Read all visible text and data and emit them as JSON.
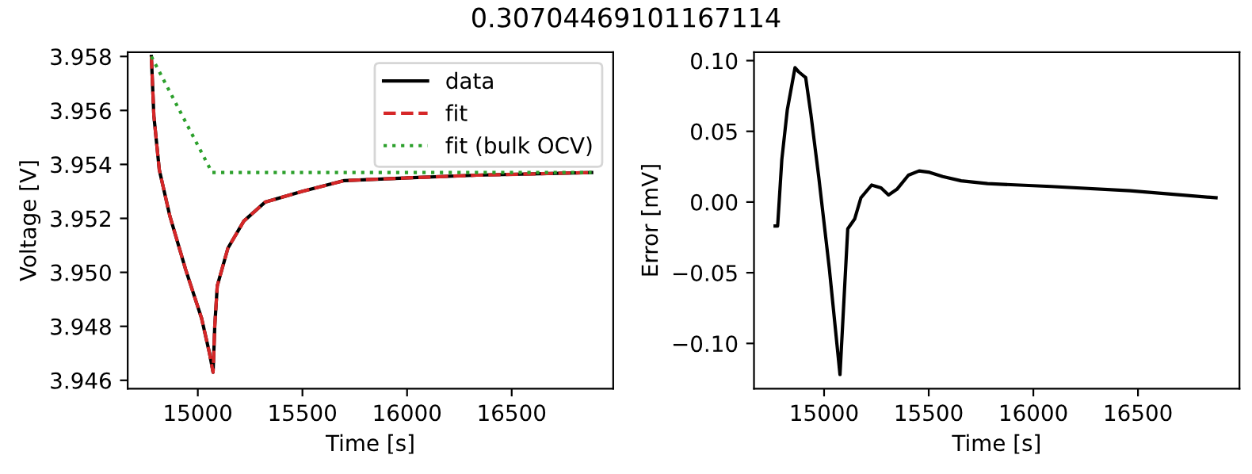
{
  "chart_data": [
    {
      "type": "line",
      "title": "0.30704469101167114",
      "xlabel": "Time [s]",
      "ylabel": "Voltage [V]",
      "xlim": [
        14665,
        16985
      ],
      "xticks": [
        15000,
        15500,
        16000,
        16500
      ],
      "ylim": [
        3.94569,
        3.95816
      ],
      "yticks": [
        {
          "value": 3.946,
          "label": "3.946"
        },
        {
          "value": 3.948,
          "label": "3.948"
        },
        {
          "value": 3.95,
          "label": "3.950"
        },
        {
          "value": 3.952,
          "label": "3.952"
        },
        {
          "value": 3.954,
          "label": "3.954"
        },
        {
          "value": 3.956,
          "label": "3.956"
        },
        {
          "value": 3.958,
          "label": "3.958"
        }
      ],
      "grid": false,
      "legend": "top right",
      "series": [
        {
          "name": "data",
          "color": "#000000",
          "line_style": "solid",
          "x": [
            14778,
            14790,
            14816,
            14866,
            14942,
            15018,
            15056,
            15073,
            15081,
            15093,
            15144,
            15220,
            15321,
            15498,
            15700,
            16003,
            16332,
            16882
          ],
          "values": [
            3.958,
            3.9558,
            3.9538,
            3.9521,
            3.9501,
            3.9483,
            3.947,
            3.9463,
            3.948,
            3.9495,
            3.9509,
            3.9519,
            3.9526,
            3.953,
            3.9534,
            3.9535,
            3.9536,
            3.9537
          ]
        },
        {
          "name": "fit",
          "color": "#d62728",
          "line_style": "dashed",
          "x": [
            14778,
            14790,
            14816,
            14866,
            14942,
            15018,
            15056,
            15073,
            15081,
            15093,
            15144,
            15220,
            15321,
            15498,
            15700,
            16003,
            16332,
            16882
          ],
          "values": [
            3.958,
            3.9558,
            3.9538,
            3.9521,
            3.9501,
            3.9483,
            3.947,
            3.9463,
            3.948,
            3.9495,
            3.9509,
            3.9519,
            3.9526,
            3.953,
            3.9534,
            3.9535,
            3.9536,
            3.9537
          ]
        },
        {
          "name": "fit (bulk OCV)",
          "color": "#2ca02c",
          "line_style": "dotted",
          "x": [
            14778,
            15068,
            16882
          ],
          "values": [
            3.958,
            3.9537,
            3.9537
          ]
        }
      ]
    },
    {
      "type": "line",
      "xlabel": "Time [s]",
      "ylabel": "Error [mV]",
      "xlim": [
        14665,
        16985
      ],
      "xticks": [
        15000,
        15500,
        16000,
        16500
      ],
      "ylim": [
        -0.132,
        0.106
      ],
      "yticks": [
        {
          "value": -0.1,
          "label": "−0.10"
        },
        {
          "value": -0.05,
          "label": "−0.05"
        },
        {
          "value": 0,
          "label": "0.00"
        },
        {
          "value": 0.05,
          "label": "0.05"
        },
        {
          "value": 0.1,
          "label": "0.10"
        }
      ],
      "grid": false,
      "legend": false,
      "series": [
        {
          "color": "#000000",
          "line_style": "solid",
          "x": [
            14766,
            14778,
            14798,
            14824,
            14861,
            14879,
            14912,
            14937,
            14975,
            15025,
            15076,
            15113,
            15146,
            15176,
            15227,
            15272,
            15308,
            15348,
            15403,
            15454,
            15504,
            15567,
            15655,
            15781,
            16084,
            16462,
            16873
          ],
          "values": [
            -0.017,
            -0.017,
            0.03,
            0.065,
            0.095,
            0.092,
            0.088,
            0.062,
            0.017,
            -0.047,
            -0.122,
            -0.019,
            -0.012,
            0.003,
            0.012,
            0.01,
            0.005,
            0.009,
            0.019,
            0.022,
            0.021,
            0.018,
            0.015,
            0.013,
            0.011,
            0.008,
            0.003
          ]
        }
      ]
    }
  ]
}
